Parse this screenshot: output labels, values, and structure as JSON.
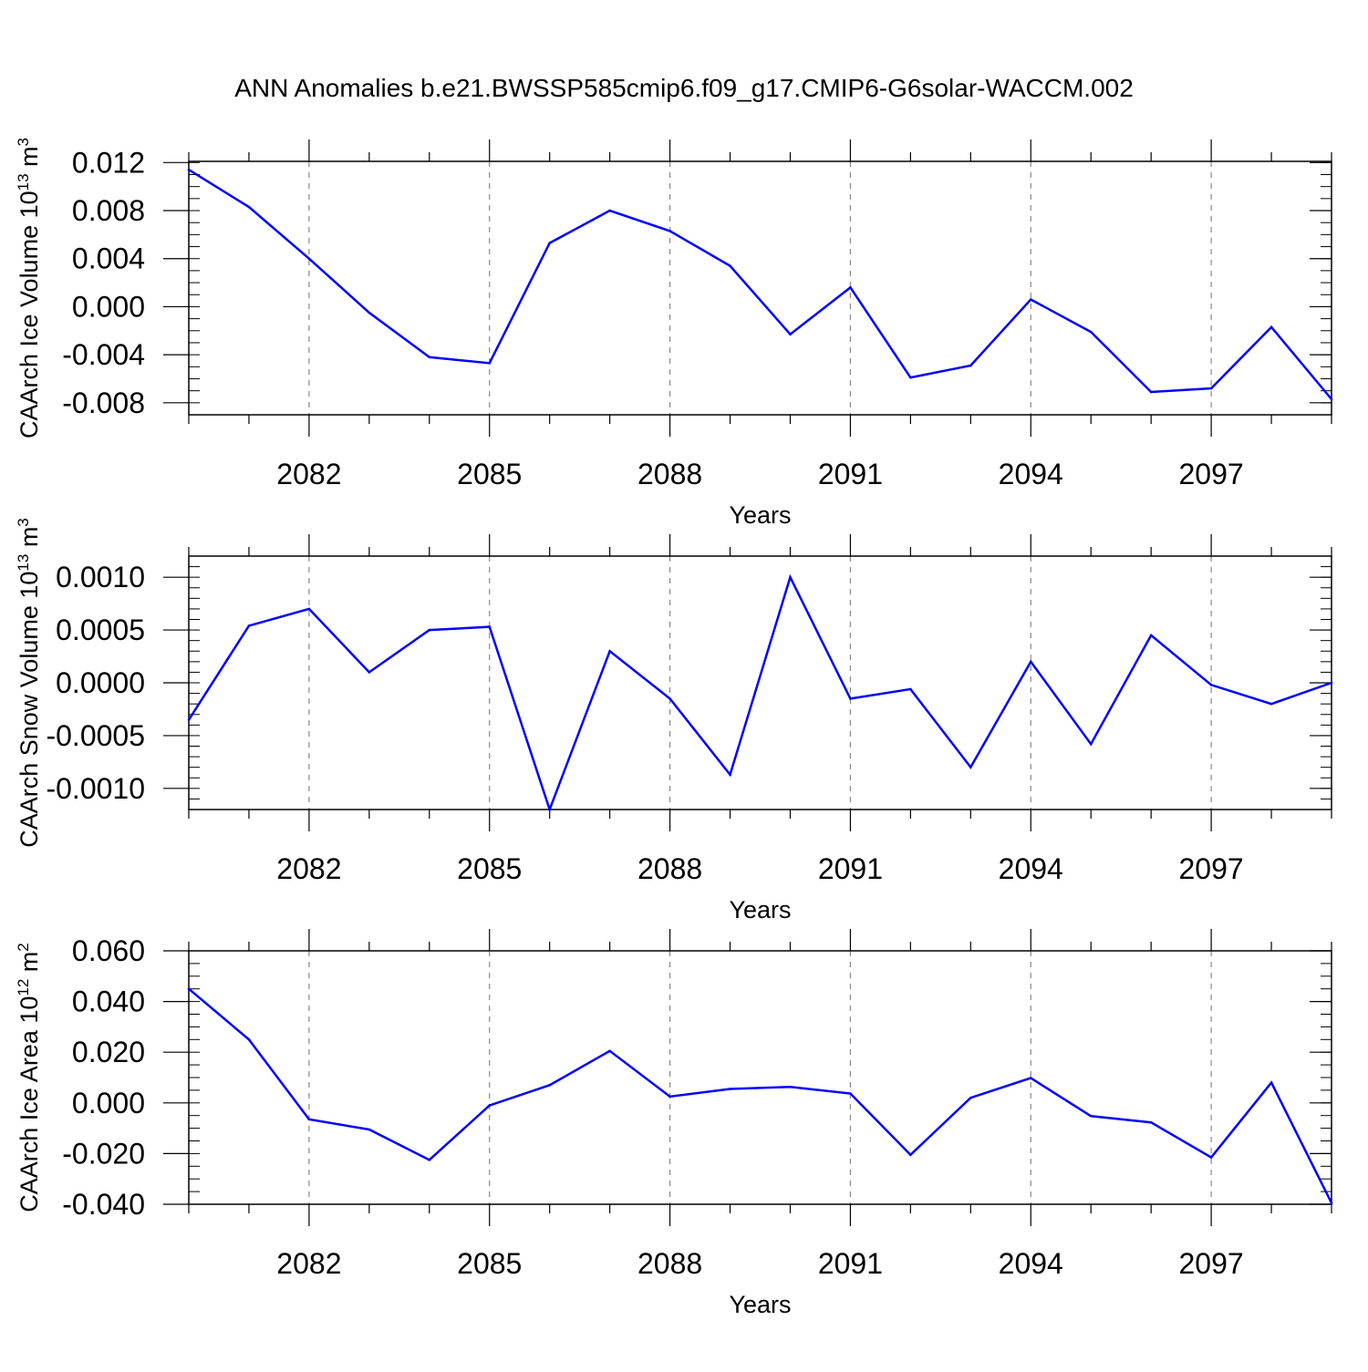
{
  "title": "ANN Anomalies b.e21.BWSSP585cmip6.f09_g17.CMIP6-G6solar-WACCM.002",
  "line_color": "#0000ff",
  "chart_data": [
    {
      "type": "line",
      "ylabel_main": "CAArch Ice Volume 10",
      "ylabel_exp": "13",
      "ylabel_unit": " m",
      "ylabel_unit_exp": "3",
      "xlabel": "Years",
      "xlim": [
        2080,
        2099
      ],
      "ylim": [
        -0.009,
        0.0121
      ],
      "x_ticks": [
        2082,
        2085,
        2088,
        2091,
        2094,
        2097
      ],
      "y_ticks": [
        0.012,
        0.008,
        0.004,
        0.0,
        -0.004,
        -0.008
      ],
      "y_tick_labels": [
        "0.012",
        "0.008",
        "0.004",
        "0.000",
        "-0.004",
        "-0.008"
      ],
      "y_minor_step": 0.001,
      "grid": "vertical dashed at major x ticks",
      "series": [
        {
          "x": [
            2080,
            2081,
            2082,
            2083,
            2084,
            2085,
            2086,
            2087,
            2088,
            2089,
            2090,
            2091,
            2092,
            2093,
            2094,
            2095,
            2096,
            2097,
            2098,
            2099
          ],
          "values": [
            0.0114,
            0.0083,
            0.004,
            -0.0005,
            -0.0042,
            -0.0047,
            0.0053,
            0.008,
            0.0063,
            0.0034,
            -0.0023,
            0.0016,
            -0.0059,
            -0.0049,
            0.0006,
            -0.0021,
            -0.0071,
            -0.0068,
            -0.0017,
            -0.0077
          ]
        }
      ]
    },
    {
      "type": "line",
      "ylabel_main": "CAArch Snow Volume 10",
      "ylabel_exp": "13",
      "ylabel_unit": " m",
      "ylabel_unit_exp": "3",
      "xlabel": "Years",
      "xlim": [
        2080,
        2099
      ],
      "ylim": [
        -0.0012,
        0.0012
      ],
      "x_ticks": [
        2082,
        2085,
        2088,
        2091,
        2094,
        2097
      ],
      "y_ticks": [
        0.001,
        0.0005,
        0.0,
        -0.0005,
        -0.001
      ],
      "y_tick_labels": [
        "0.0010",
        "0.0005",
        "0.0000",
        "-0.0005",
        "-0.0010"
      ],
      "y_minor_step": 0.0001,
      "grid": "vertical dashed at major x ticks",
      "series": [
        {
          "x": [
            2080,
            2081,
            2082,
            2083,
            2084,
            2085,
            2086,
            2087,
            2088,
            2089,
            2090,
            2091,
            2092,
            2093,
            2094,
            2095,
            2096,
            2097,
            2098,
            2099
          ],
          "values": [
            -0.00035,
            0.00054,
            0.0007,
            0.0001,
            0.0005,
            0.00053,
            -0.0012,
            0.0003,
            -0.00015,
            -0.00087,
            0.001,
            -0.00015,
            -6e-05,
            -0.0008,
            0.0002,
            -0.00058,
            0.00045,
            -2e-05,
            -0.0002,
            0.0
          ]
        }
      ]
    },
    {
      "type": "line",
      "ylabel_main": "CAArch Ice Area 10",
      "ylabel_exp": "12",
      "ylabel_unit": " m",
      "ylabel_unit_exp": "2",
      "xlabel": "Years",
      "xlim": [
        2080,
        2099
      ],
      "ylim": [
        -0.04,
        0.06
      ],
      "x_ticks": [
        2082,
        2085,
        2088,
        2091,
        2094,
        2097
      ],
      "y_ticks": [
        0.06,
        0.04,
        0.02,
        0.0,
        -0.02,
        -0.04
      ],
      "y_tick_labels": [
        "0.060",
        "0.040",
        "0.020",
        "0.000",
        "-0.020",
        "-0.040"
      ],
      "y_minor_step": 0.005,
      "grid": "vertical dashed at major x ticks",
      "series": [
        {
          "x": [
            2080,
            2081,
            2082,
            2083,
            2084,
            2085,
            2086,
            2087,
            2088,
            2089,
            2090,
            2091,
            2092,
            2093,
            2094,
            2095,
            2096,
            2097,
            2098,
            2099
          ],
          "values": [
            0.045,
            0.025,
            -0.0065,
            -0.0105,
            -0.0225,
            -0.001,
            0.007,
            0.0205,
            0.0025,
            0.0055,
            0.0063,
            0.0037,
            -0.0205,
            0.002,
            0.0098,
            -0.0052,
            -0.0077,
            -0.0215,
            0.008,
            -0.0395
          ]
        }
      ]
    }
  ]
}
